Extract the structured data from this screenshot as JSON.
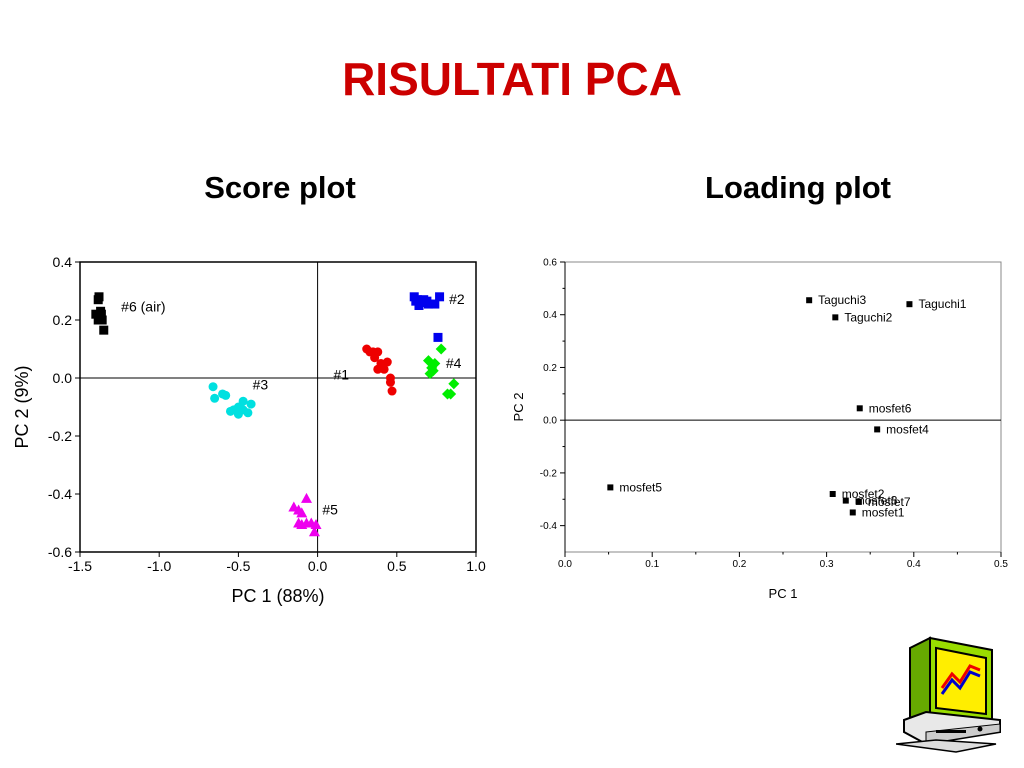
{
  "slide": {
    "title": "RISULTATI PCA",
    "score_title": "Score plot",
    "loading_title": "Loading plot"
  },
  "chart_data": [
    {
      "type": "scatter",
      "id": "score",
      "title": "Score plot",
      "xlabel": "PC 1 (88%)",
      "ylabel": "PC 2 (9%)",
      "xlim": [
        -1.5,
        1.0
      ],
      "ylim": [
        -0.6,
        0.4
      ],
      "xticks": [
        -1.5,
        -1.0,
        -0.5,
        0.0,
        0.5,
        1.0
      ],
      "xtick_labels": [
        "-1.5",
        "-1.0",
        "-0.5",
        "0.0",
        "0.5",
        "1.0"
      ],
      "yticks": [
        -0.6,
        -0.4,
        -0.2,
        0.0,
        0.2,
        0.4
      ],
      "ytick_labels": [
        "-0.6",
        "-0.4",
        "-0.2",
        "0.0",
        "0.2",
        "0.4"
      ],
      "zero_lines": true,
      "grid": false,
      "series": [
        {
          "name": "#6 (air)",
          "color": "#000000",
          "marker": "square",
          "label_pos": [
            -1.24,
            0.23
          ],
          "points": [
            [
              -1.38,
              0.28
            ],
            [
              -1.385,
              0.27
            ],
            [
              -1.37,
              0.23
            ],
            [
              -1.4,
              0.22
            ],
            [
              -1.375,
              0.215
            ],
            [
              -1.365,
              0.22
            ],
            [
              -1.385,
              0.2
            ],
            [
              -1.36,
              0.2
            ],
            [
              -1.35,
              0.165
            ]
          ]
        },
        {
          "name": "#2",
          "color": "#0000ee",
          "marker": "square",
          "label_pos": [
            0.83,
            0.255
          ],
          "points": [
            [
              0.61,
              0.28
            ],
            [
              0.62,
              0.265
            ],
            [
              0.63,
              0.27
            ],
            [
              0.655,
              0.265
            ],
            [
              0.67,
              0.27
            ],
            [
              0.69,
              0.265
            ],
            [
              0.64,
              0.25
            ],
            [
              0.66,
              0.26
            ],
            [
              0.7,
              0.255
            ],
            [
              0.74,
              0.255
            ],
            [
              0.77,
              0.28
            ],
            [
              0.76,
              0.14
            ]
          ]
        },
        {
          "name": "#1",
          "color": "#ee0000",
          "marker": "circle",
          "label_pos": [
            0.1,
            -0.005
          ],
          "points": [
            [
              0.31,
              0.1
            ],
            [
              0.33,
              0.09
            ],
            [
              0.35,
              0.09
            ],
            [
              0.38,
              0.09
            ],
            [
              0.36,
              0.07
            ],
            [
              0.4,
              0.05
            ],
            [
              0.44,
              0.055
            ],
            [
              0.38,
              0.03
            ],
            [
              0.42,
              0.03
            ],
            [
              0.46,
              0.0
            ],
            [
              0.46,
              -0.015
            ],
            [
              0.47,
              -0.045
            ]
          ]
        },
        {
          "name": "#4",
          "color": "#00ee00",
          "marker": "diamond",
          "label_pos": [
            0.81,
            0.035
          ],
          "points": [
            [
              0.78,
              0.1
            ],
            [
              0.7,
              0.06
            ],
            [
              0.74,
              0.05
            ],
            [
              0.72,
              0.035
            ],
            [
              0.71,
              0.015
            ],
            [
              0.73,
              0.025
            ],
            [
              0.86,
              -0.02
            ],
            [
              0.84,
              -0.055
            ],
            [
              0.82,
              -0.055
            ]
          ]
        },
        {
          "name": "#3",
          "color": "#00e0e0",
          "marker": "circle",
          "label_pos": [
            -0.41,
            -0.04
          ],
          "points": [
            [
              -0.66,
              -0.03
            ],
            [
              -0.6,
              -0.055
            ],
            [
              -0.58,
              -0.06
            ],
            [
              -0.65,
              -0.07
            ],
            [
              -0.47,
              -0.08
            ],
            [
              -0.42,
              -0.09
            ],
            [
              -0.53,
              -0.11
            ],
            [
              -0.5,
              -0.1
            ],
            [
              -0.47,
              -0.11
            ],
            [
              -0.44,
              -0.12
            ],
            [
              -0.5,
              -0.125
            ],
            [
              -0.55,
              -0.115
            ]
          ]
        },
        {
          "name": "#5",
          "color": "#ee00ee",
          "marker": "triangle",
          "label_pos": [
            0.03,
            -0.47
          ],
          "points": [
            [
              -0.07,
              -0.415
            ],
            [
              -0.15,
              -0.445
            ],
            [
              -0.12,
              -0.455
            ],
            [
              -0.1,
              -0.465
            ],
            [
              -0.12,
              -0.5
            ],
            [
              -0.1,
              -0.505
            ],
            [
              -0.07,
              -0.5
            ],
            [
              -0.04,
              -0.5
            ],
            [
              -0.01,
              -0.505
            ],
            [
              -0.02,
              -0.53
            ]
          ]
        }
      ]
    },
    {
      "type": "scatter",
      "id": "loading",
      "title": "Loading plot",
      "xlabel": "PC 1",
      "ylabel": "PC 2",
      "xlim": [
        0.0,
        0.5
      ],
      "ylim": [
        -0.5,
        0.6
      ],
      "xticks": [
        0.0,
        0.1,
        0.2,
        0.3,
        0.4,
        0.5
      ],
      "xtick_labels": [
        "0.0",
        "0.1",
        "0.2",
        "0.3",
        "0.4",
        "0.5"
      ],
      "yticks": [
        -0.4,
        -0.2,
        0.0,
        0.2,
        0.4,
        0.6
      ],
      "ytick_labels": [
        "-0.4",
        "-0.2",
        "0.0",
        "0.2",
        "0.4",
        "0.6"
      ],
      "zero_lines": true,
      "grid": false,
      "points": [
        {
          "label": "Taguchi3",
          "x": 0.28,
          "y": 0.455
        },
        {
          "label": "Taguchi1",
          "x": 0.395,
          "y": 0.44
        },
        {
          "label": "Taguchi2",
          "x": 0.31,
          "y": 0.39
        },
        {
          "label": "mosfet6",
          "x": 0.338,
          "y": 0.045
        },
        {
          "label": "mosfet4",
          "x": 0.358,
          "y": -0.035
        },
        {
          "label": "mosfet5",
          "x": 0.052,
          "y": -0.255
        },
        {
          "label": "mosfet2",
          "x": 0.307,
          "y": -0.28
        },
        {
          "label": "mosfet3",
          "x": 0.322,
          "y": -0.305
        },
        {
          "label": "mosfet7",
          "x": 0.337,
          "y": -0.31
        },
        {
          "label": "mosfet1",
          "x": 0.33,
          "y": -0.35
        }
      ]
    }
  ],
  "icons": {
    "computer": "computer-chart-icon"
  }
}
